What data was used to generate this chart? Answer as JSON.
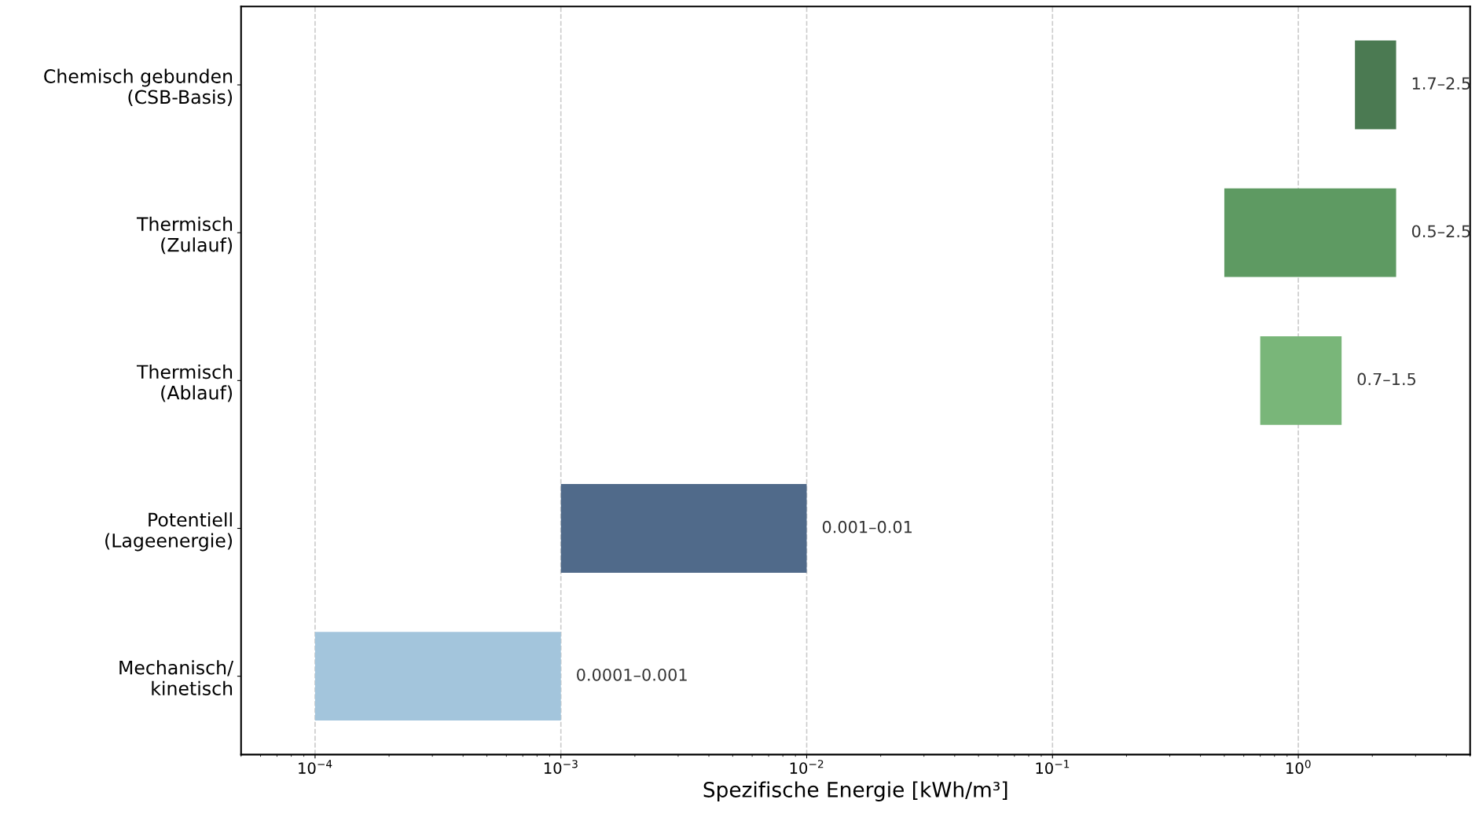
{
  "chart_data": {
    "type": "bar",
    "orientation": "horizontal",
    "log": "x",
    "xlabel": "Spezifische Energie [kWh/m³]",
    "categories": [
      "Chemisch gebunden\n(CSB-Basis)",
      "Thermisch\n(Zulauf)",
      "Thermisch\n(Ablauf)",
      "Potentiell\n(Lageenergie)",
      "Mechanisch/\nkinetisch"
    ],
    "base": [
      1.7,
      0.5,
      0.7,
      0.001,
      0.0001
    ],
    "values": [
      0.8,
      2.0,
      0.8,
      0.009,
      0.0009
    ],
    "colors": [
      "#4b7a52",
      "#5e9a62",
      "#79b679",
      "#506a8a",
      "#a3c5dc"
    ],
    "value_labels": [
      "1.7–2.5",
      "0.5–2.5",
      "0.7–1.5",
      "0.001–0.01",
      "0.0001–0.001"
    ],
    "xlim": [
      5e-05,
      5
    ],
    "xticks": [
      {
        "value": 0.0001,
        "label": "10$^{−4}$"
      },
      {
        "value": 0.001,
        "label": "10$^{−3}$"
      },
      {
        "value": 0.01,
        "label": "10$^{−2}$"
      },
      {
        "value": 0.1,
        "label": "10$^{−1}$"
      },
      {
        "value": 1,
        "label": "10$^{0}$"
      }
    ],
    "grid": "x",
    "line_style": "dashed"
  }
}
